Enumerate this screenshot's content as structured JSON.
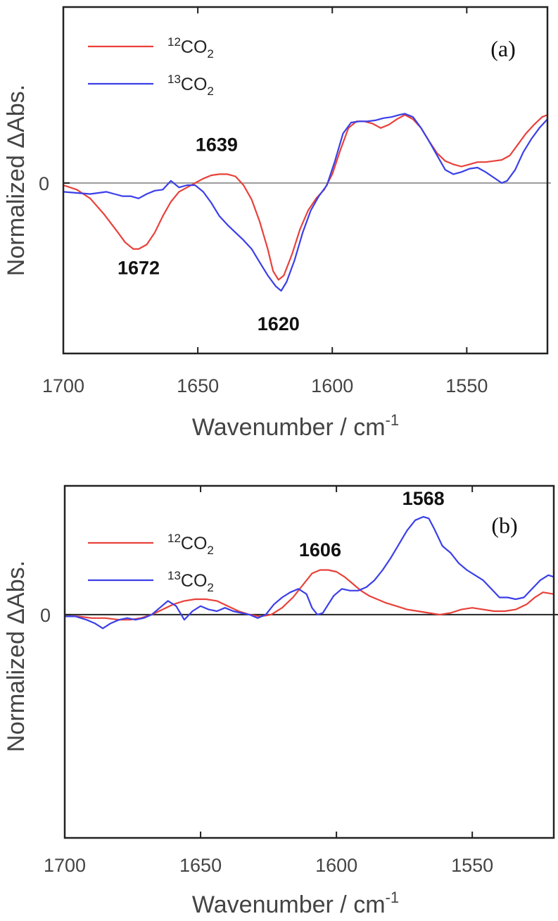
{
  "chart_data": [
    {
      "type": "line",
      "panel_label": "(a)",
      "xlabel": "Wavenumber / cm",
      "xlabel_sup": "-1",
      "ylabel": "Normalized ΔAbs.",
      "xlim": [
        1700,
        1520
      ],
      "ylim": [
        -1.55,
        1.6
      ],
      "xticks": [
        1700,
        1650,
        1600,
        1550
      ],
      "yticks": [
        0
      ],
      "legend": {
        "position": "top-left"
      },
      "series": [
        {
          "name": "12CO2",
          "iso": "12",
          "base": "CO",
          "sub": "2",
          "color": "#e8413a",
          "x": [
            1700,
            1695,
            1690,
            1685,
            1680,
            1677,
            1674,
            1672,
            1669,
            1666,
            1663,
            1660,
            1657,
            1654,
            1651,
            1648,
            1645,
            1642,
            1639,
            1636,
            1633,
            1630,
            1627,
            1624,
            1622,
            1620,
            1618,
            1615,
            1612,
            1609,
            1606,
            1603,
            1600,
            1597,
            1594,
            1591,
            1588,
            1585,
            1582,
            1579,
            1576,
            1573,
            1570,
            1567,
            1564,
            1561,
            1558,
            1555,
            1552,
            1549,
            1546,
            1543,
            1540,
            1537,
            1534,
            1531,
            1528,
            1525,
            1522,
            1520
          ],
          "y": [
            -0.02,
            -0.06,
            -0.14,
            -0.28,
            -0.44,
            -0.54,
            -0.6,
            -0.6,
            -0.56,
            -0.45,
            -0.3,
            -0.17,
            -0.08,
            -0.04,
            0.0,
            0.04,
            0.07,
            0.08,
            0.08,
            0.06,
            -0.02,
            -0.15,
            -0.35,
            -0.6,
            -0.8,
            -0.88,
            -0.84,
            -0.65,
            -0.42,
            -0.25,
            -0.14,
            -0.06,
            0.08,
            0.3,
            0.5,
            0.56,
            0.56,
            0.54,
            0.5,
            0.53,
            0.58,
            0.62,
            0.58,
            0.5,
            0.38,
            0.27,
            0.2,
            0.17,
            0.15,
            0.17,
            0.19,
            0.19,
            0.2,
            0.21,
            0.25,
            0.35,
            0.45,
            0.53,
            0.6,
            0.62
          ]
        },
        {
          "name": "13CO2",
          "iso": "13",
          "base": "CO",
          "sub": "2",
          "color": "#3b3fe8",
          "x": [
            1700,
            1695,
            1690,
            1687,
            1684,
            1681,
            1678,
            1675,
            1672,
            1669,
            1666,
            1663,
            1660,
            1657,
            1654,
            1651,
            1648,
            1645,
            1642,
            1639,
            1636,
            1633,
            1630,
            1627,
            1624,
            1621,
            1619,
            1617,
            1614,
            1611,
            1608,
            1605,
            1602,
            1599,
            1596,
            1593,
            1590,
            1587,
            1584,
            1581,
            1578,
            1575,
            1573,
            1570,
            1567,
            1564,
            1561,
            1558,
            1555,
            1552,
            1549,
            1546,
            1543,
            1540,
            1537,
            1535,
            1532,
            1529,
            1526,
            1523,
            1520
          ],
          "y": [
            -0.08,
            -0.09,
            -0.1,
            -0.09,
            -0.08,
            -0.1,
            -0.12,
            -0.12,
            -0.14,
            -0.1,
            -0.07,
            -0.06,
            0.02,
            -0.04,
            -0.02,
            -0.02,
            -0.08,
            -0.18,
            -0.3,
            -0.38,
            -0.45,
            -0.52,
            -0.6,
            -0.72,
            -0.84,
            -0.94,
            -0.98,
            -0.9,
            -0.7,
            -0.45,
            -0.25,
            -0.12,
            -0.02,
            0.2,
            0.45,
            0.55,
            0.56,
            0.56,
            0.57,
            0.59,
            0.6,
            0.62,
            0.63,
            0.6,
            0.5,
            0.38,
            0.25,
            0.12,
            0.08,
            0.1,
            0.13,
            0.14,
            0.1,
            0.05,
            0.0,
            0.02,
            0.12,
            0.28,
            0.4,
            0.5,
            0.58
          ]
        }
      ],
      "annotations": [
        {
          "text": "1672",
          "x": 1672,
          "y": -0.83
        },
        {
          "text": "1639",
          "x": 1643,
          "y": 0.29
        },
        {
          "text": "1620",
          "x": 1620,
          "y": -1.34
        }
      ]
    },
    {
      "type": "line",
      "panel_label": "(b)",
      "xlabel": "Wavenumber / cm",
      "xlabel_sup": "-1",
      "ylabel": "Normalized ΔAbs.",
      "xlim": [
        1700,
        1520
      ],
      "ylim": [
        -1.3,
        0.75
      ],
      "xticks": [
        1700,
        1650,
        1600,
        1550
      ],
      "yticks": [
        0
      ],
      "legend": {
        "position": "top-left"
      },
      "series": [
        {
          "name": "12CO2",
          "iso": "12",
          "base": "CO",
          "sub": "2",
          "color": "#e8413a",
          "x": [
            1700,
            1695,
            1690,
            1685,
            1680,
            1676,
            1672,
            1668,
            1664,
            1660,
            1656,
            1652,
            1648,
            1644,
            1640,
            1636,
            1632,
            1628,
            1624,
            1620,
            1616,
            1612,
            1609,
            1606,
            1603,
            1600,
            1597,
            1594,
            1591,
            1588,
            1585,
            1582,
            1578,
            1574,
            1570,
            1566,
            1562,
            1558,
            1554,
            1550,
            1546,
            1542,
            1538,
            1534,
            1530,
            1527,
            1524,
            1520
          ],
          "y": [
            -0.01,
            -0.01,
            -0.02,
            -0.02,
            -0.03,
            -0.03,
            -0.02,
            0.0,
            0.03,
            0.06,
            0.08,
            0.09,
            0.09,
            0.08,
            0.05,
            0.02,
            0.0,
            -0.01,
            0.0,
            0.04,
            0.1,
            0.18,
            0.24,
            0.26,
            0.26,
            0.25,
            0.22,
            0.18,
            0.14,
            0.11,
            0.09,
            0.07,
            0.05,
            0.03,
            0.02,
            0.01,
            0.0,
            0.01,
            0.03,
            0.04,
            0.03,
            0.02,
            0.02,
            0.03,
            0.06,
            0.1,
            0.13,
            0.12
          ]
        },
        {
          "name": "13CO2",
          "iso": "13",
          "base": "CO",
          "sub": "2",
          "color": "#3b3fe8",
          "x": [
            1700,
            1696,
            1692,
            1689,
            1686,
            1683,
            1680,
            1677,
            1674,
            1671,
            1668,
            1665,
            1662,
            1659,
            1656,
            1653,
            1650,
            1647,
            1644,
            1641,
            1638,
            1635,
            1632,
            1629,
            1626,
            1623,
            1620,
            1617,
            1614,
            1611,
            1609,
            1607,
            1605,
            1603,
            1601,
            1598,
            1595,
            1592,
            1589,
            1586,
            1583,
            1580,
            1577,
            1574,
            1571,
            1568,
            1566,
            1564,
            1561,
            1558,
            1555,
            1552,
            1549,
            1546,
            1543,
            1540,
            1537,
            1534,
            1531,
            1528,
            1525,
            1522,
            1520
          ],
          "y": [
            -0.01,
            -0.01,
            -0.03,
            -0.05,
            -0.08,
            -0.05,
            -0.03,
            -0.02,
            -0.03,
            -0.02,
            0.0,
            0.04,
            0.08,
            0.05,
            -0.03,
            0.02,
            0.05,
            0.03,
            0.02,
            0.04,
            0.02,
            0.01,
            0.0,
            -0.02,
            0.0,
            0.06,
            0.1,
            0.13,
            0.15,
            0.12,
            0.04,
            0.0,
            0.01,
            0.06,
            0.11,
            0.15,
            0.14,
            0.14,
            0.16,
            0.2,
            0.26,
            0.33,
            0.41,
            0.49,
            0.55,
            0.57,
            0.56,
            0.5,
            0.4,
            0.36,
            0.3,
            0.26,
            0.23,
            0.2,
            0.15,
            0.1,
            0.1,
            0.09,
            0.1,
            0.15,
            0.2,
            0.23,
            0.22
          ]
        }
      ],
      "annotations": [
        {
          "text": "1606",
          "x": 1606,
          "y": 0.34
        },
        {
          "text": "1568",
          "x": 1568,
          "y": 0.64
        }
      ]
    }
  ]
}
